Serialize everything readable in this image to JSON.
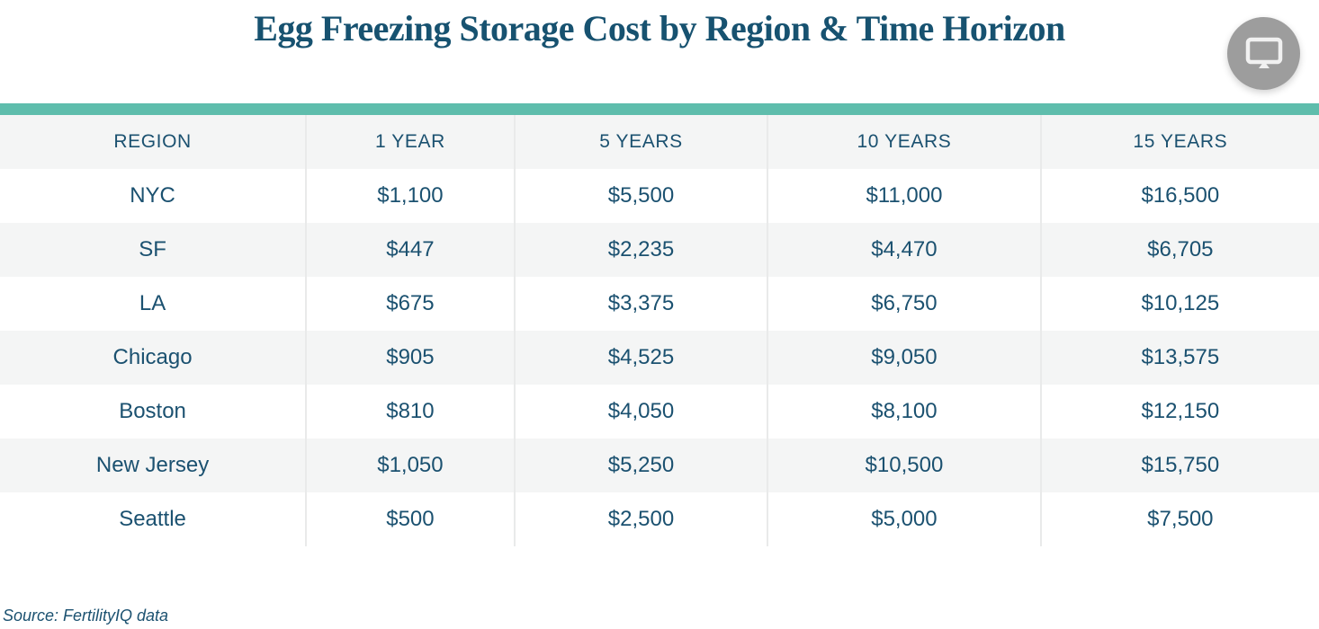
{
  "title": "Egg Freezing Storage Cost by Region & Time Horizon",
  "source": "Source: FertilityIQ data",
  "colors": {
    "accent_bar": "#5ebdac",
    "text": "#1b5170",
    "title_text": "#175270",
    "row_alt_background": "#f4f5f5",
    "column_divider": "#e9eaea",
    "icon_circle": "#9d9d9d"
  },
  "header": {
    "icon": "monitor-icon"
  },
  "chart_data": {
    "type": "table",
    "title": "Egg Freezing Storage Cost by Region & Time Horizon",
    "columns": [
      "REGION",
      "1 YEAR",
      "5 YEARS",
      "10 YEARS",
      "15 YEARS"
    ],
    "column_widths_pct": [
      23.2,
      15.8,
      19.2,
      20.7,
      21.1
    ],
    "rows": [
      {
        "region": "NYC",
        "display": [
          "$1,100",
          "$5,500",
          "$11,000",
          "$16,500"
        ],
        "values": [
          1100,
          5500,
          11000,
          16500
        ]
      },
      {
        "region": "SF",
        "display": [
          "$447",
          "$2,235",
          "$4,470",
          "$6,705"
        ],
        "values": [
          447,
          2235,
          4470,
          6705
        ]
      },
      {
        "region": "LA",
        "display": [
          "$675",
          "$3,375",
          "$6,750",
          "$10,125"
        ],
        "values": [
          675,
          3375,
          6750,
          10125
        ]
      },
      {
        "region": "Chicago",
        "display": [
          "$905",
          "$4,525",
          "$9,050",
          "$13,575"
        ],
        "values": [
          905,
          4525,
          9050,
          13575
        ]
      },
      {
        "region": "Boston",
        "display": [
          "$810",
          "$4,050",
          "$8,100",
          "$12,150"
        ],
        "values": [
          810,
          4050,
          8100,
          12150
        ]
      },
      {
        "region": "New Jersey",
        "display": [
          "$1,050",
          "$5,250",
          "$10,500",
          "$15,750"
        ],
        "values": [
          1050,
          5250,
          10500,
          15750
        ]
      },
      {
        "region": "Seattle",
        "display": [
          "$500",
          "$2,500",
          "$5,000",
          "$7,500"
        ],
        "values": [
          500,
          2500,
          5000,
          7500
        ]
      }
    ],
    "source": "Source: FertilityIQ data"
  }
}
